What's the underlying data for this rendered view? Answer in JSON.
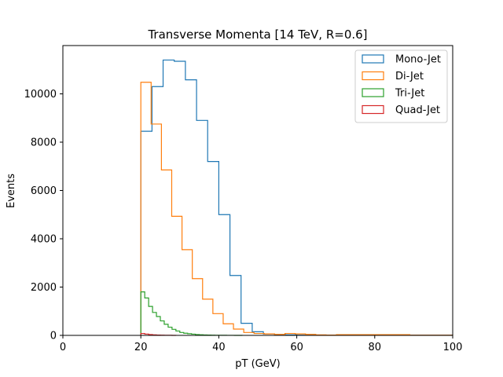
{
  "chart_data": {
    "type": "histogram",
    "title": "Transverse Momenta [14 TeV, R=0.6]",
    "xlabel": "pT (GeV)",
    "ylabel": "Events",
    "xlim": [
      0,
      100
    ],
    "ylim": [
      0,
      12000
    ],
    "xticks": [
      0,
      20,
      40,
      60,
      80,
      100
    ],
    "yticks": [
      0,
      2000,
      4000,
      6000,
      8000,
      10000
    ],
    "legend_position": "top-right",
    "grid": false,
    "series": [
      {
        "name": "Mono-Jet",
        "color": "#1f77b4",
        "edges": [
          20,
          22.86,
          25.71,
          28.57,
          31.43,
          34.29,
          37.14,
          40,
          42.86,
          45.71,
          48.57,
          51.43,
          54.29,
          57.14,
          60,
          100
        ],
        "counts": [
          8450,
          10300,
          11400,
          11350,
          10580,
          8900,
          7200,
          5000,
          2480,
          500,
          150,
          60,
          30,
          20,
          10
        ]
      },
      {
        "name": "Di-Jet",
        "color": "#ff7f0e",
        "edges": [
          20,
          22.64,
          25.28,
          27.92,
          30.56,
          33.2,
          35.84,
          38.48,
          41.12,
          43.76,
          46.4,
          49.04,
          51.68,
          54.32,
          56.96,
          59.6,
          62.24,
          64.88,
          67.52,
          70.16,
          89,
          100
        ],
        "counts": [
          10480,
          8750,
          6850,
          4930,
          3550,
          2350,
          1500,
          900,
          480,
          260,
          120,
          80,
          60,
          40,
          80,
          60,
          40,
          20,
          15,
          30,
          10
        ]
      },
      {
        "name": "Tri-Jet",
        "color": "#2ca02c",
        "edges": [
          20,
          21,
          22,
          23,
          24,
          25,
          26,
          27,
          28,
          29,
          30,
          31,
          32,
          33,
          34,
          35,
          36,
          37,
          38,
          39,
          40,
          41,
          42,
          44,
          46
        ],
        "counts": [
          1800,
          1550,
          1200,
          950,
          780,
          600,
          460,
          340,
          250,
          180,
          120,
          90,
          70,
          50,
          35,
          25,
          18,
          12,
          8,
          5,
          4,
          3,
          2,
          1
        ]
      },
      {
        "name": "Quad-Jet",
        "color": "#d62728",
        "edges": [
          20,
          21,
          22,
          23,
          24,
          25,
          26,
          27,
          28,
          29
        ],
        "counts": [
          80,
          55,
          35,
          22,
          14,
          8,
          5,
          3,
          1
        ]
      }
    ]
  }
}
